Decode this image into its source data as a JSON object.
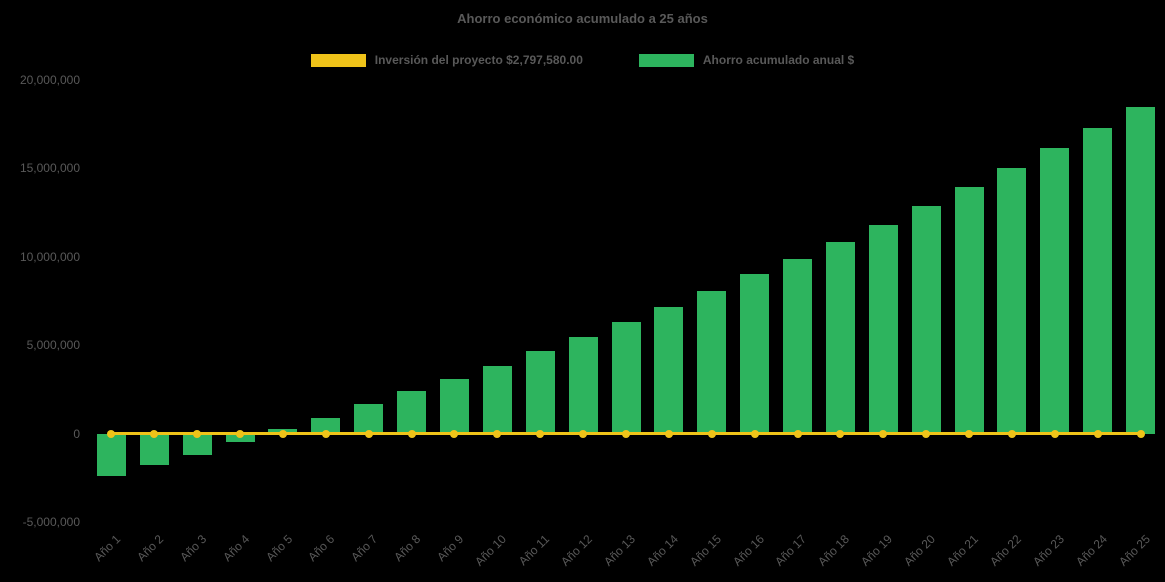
{
  "title": "Ahorro económico acumulado a 25 años",
  "legend": {
    "investment": {
      "label": "Inversión del proyecto $2,797,580.00",
      "color": "#EFC319"
    },
    "savings": {
      "label": "Ahorro acumulado anual $",
      "color": "#2DB45E"
    }
  },
  "chart_data": {
    "type": "bar",
    "title": "Ahorro económico acumulado a 25 años",
    "categories": [
      "Año 1",
      "Año 2",
      "Año 3",
      "Año 4",
      "Año 5",
      "Año 6",
      "Año 7",
      "Año 8",
      "Año 9",
      "Año 10",
      "Año 11",
      "Año 12",
      "Año 13",
      "Año 14",
      "Año 15",
      "Año 16",
      "Año 17",
      "Año 18",
      "Año 19",
      "Año 20",
      "Año 21",
      "Año 22",
      "Año 23",
      "Año 24",
      "Año 25"
    ],
    "series": [
      {
        "name": "Ahorro acumulado anual $",
        "color": "#2DB45E",
        "values": [
          -2400000,
          -1800000,
          -1200000,
          -500000,
          250000,
          900000,
          1650000,
          2400000,
          3100000,
          3850000,
          4650000,
          5450000,
          6300000,
          7150000,
          8050000,
          9000000,
          9900000,
          10850000,
          11800000,
          12900000,
          13950000,
          15050000,
          16150000,
          17300000,
          18500000
        ]
      }
    ],
    "line_series": {
      "name": "Inversión del proyecto $2,797,580.00",
      "color": "#EFC319",
      "plotted_value": 0,
      "marker": "circle"
    },
    "xlabel": "",
    "ylabel": "",
    "ylim": [
      -5000000,
      20000000
    ],
    "yticks": [
      20000000,
      15000000,
      10000000,
      5000000,
      0,
      -5000000
    ],
    "ytick_labels": [
      "20,000,000",
      "15,000,000",
      "10,000,000",
      "5,000,000",
      "0",
      "-5,000,000"
    ],
    "grid": false,
    "legend_position": "top",
    "background": "#000000"
  }
}
